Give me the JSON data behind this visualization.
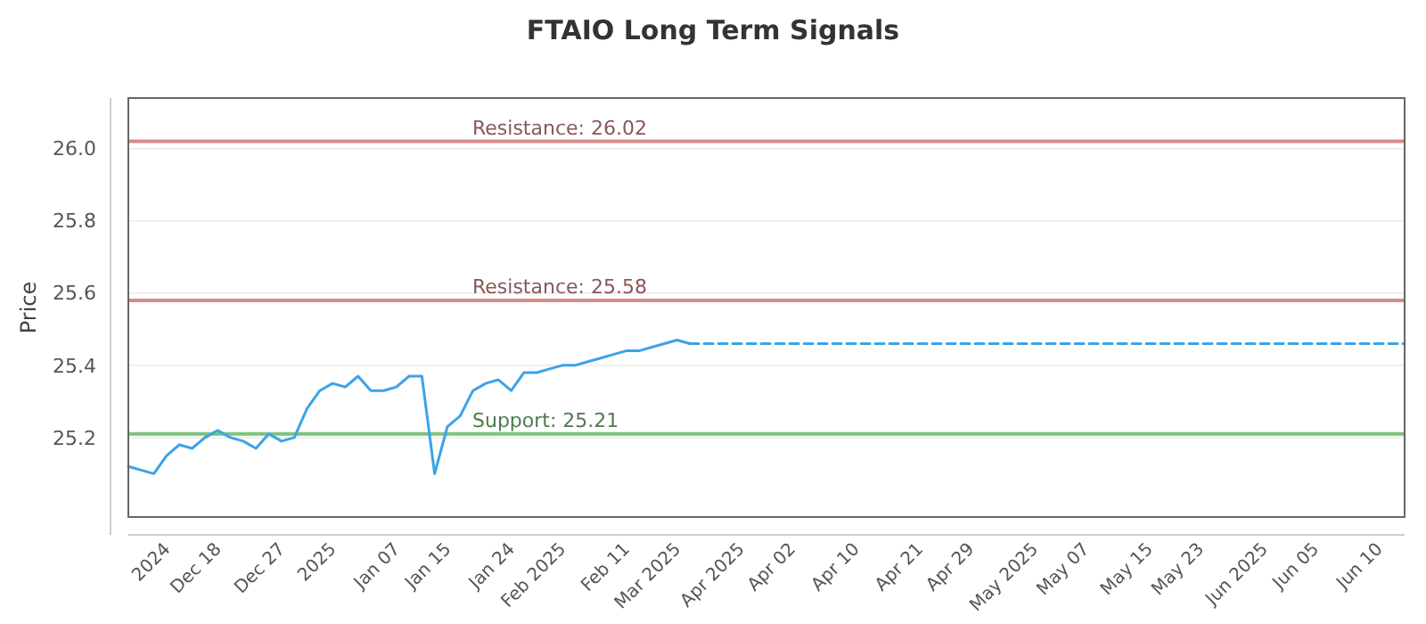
{
  "chart_data": {
    "type": "line",
    "title": "FTAIO Long Term Signals",
    "ylabel": "Price",
    "categories": [
      null,
      null,
      null,
      "2024",
      null,
      null,
      null,
      "Dec 18",
      null,
      null,
      null,
      null,
      "Dec 27",
      null,
      null,
      null,
      "2025",
      null,
      null,
      null,
      null,
      "Jan 07",
      null,
      null,
      null,
      "Jan 15",
      null,
      null,
      null,
      null,
      "Jan 24",
      null,
      null,
      null,
      "Feb 2025",
      null,
      null,
      null,
      null,
      "Feb 11",
      null,
      null,
      null,
      "Mar 2025",
      null,
      null,
      null,
      null,
      "Apr 2025",
      null,
      null,
      null,
      "Apr 02",
      null,
      null,
      null,
      null,
      "Apr 10",
      null,
      null,
      null,
      null,
      "Apr 21",
      null,
      null,
      null,
      "Apr 29",
      null,
      null,
      null,
      null,
      "May 2025",
      null,
      null,
      null,
      "May 07",
      null,
      null,
      null,
      null,
      "May 15",
      null,
      null,
      null,
      "May 23",
      null,
      null,
      null,
      null,
      "Jun 2025",
      null,
      null,
      null,
      "Jun 05",
      null,
      null,
      null,
      null,
      "Jun 10",
      null,
      null
    ],
    "series": [
      {
        "color": "#3ba3e8",
        "line_style": "solid",
        "values": [
          25.12,
          25.11,
          25.1,
          25.15,
          25.18,
          25.17,
          25.2,
          25.22,
          25.2,
          25.19,
          25.17,
          25.21,
          25.19,
          25.2,
          25.28,
          25.33,
          25.35,
          25.34,
          25.37,
          25.33,
          25.33,
          25.34,
          25.37,
          25.37,
          25.1,
          25.23,
          25.26,
          25.33,
          25.35,
          25.36,
          25.33,
          25.38,
          25.38,
          25.39,
          25.4,
          25.4,
          25.41,
          25.42,
          25.43,
          25.44,
          25.44,
          25.45,
          25.46,
          25.47,
          25.46,
          null,
          null,
          null,
          null,
          null,
          null,
          null,
          null,
          null,
          null,
          null,
          null,
          null,
          null,
          null,
          null,
          null,
          null,
          null,
          null,
          null,
          null,
          null,
          null,
          null,
          null,
          null,
          null,
          null,
          null,
          null,
          null,
          null,
          null,
          null,
          null,
          null,
          null,
          null,
          null,
          null,
          null,
          null,
          null,
          null,
          null,
          null,
          null,
          null,
          null,
          null,
          null,
          null,
          null,
          null,
          null
        ]
      },
      {
        "color": "#3ba3e8",
        "line_style": "dashed",
        "values": [
          null,
          null,
          null,
          null,
          null,
          null,
          null,
          null,
          null,
          null,
          null,
          null,
          null,
          null,
          null,
          null,
          null,
          null,
          null,
          null,
          null,
          null,
          null,
          null,
          null,
          null,
          null,
          null,
          null,
          null,
          null,
          null,
          null,
          null,
          null,
          null,
          null,
          null,
          null,
          null,
          null,
          null,
          null,
          null,
          25.46,
          25.46,
          25.46,
          25.46,
          25.46,
          25.46,
          25.46,
          25.46,
          25.46,
          25.46,
          25.46,
          25.46,
          25.46,
          25.46,
          25.46,
          25.46,
          25.46,
          25.46,
          25.46,
          25.46,
          25.46,
          25.46,
          25.46,
          25.46,
          25.46,
          25.46,
          25.46,
          25.46,
          25.46,
          25.46,
          25.46,
          25.46,
          25.46,
          25.46,
          25.46,
          25.46,
          25.46,
          25.46,
          25.46,
          25.46,
          25.46,
          25.46,
          25.46,
          25.46,
          25.46,
          25.46,
          25.46,
          25.46,
          25.46,
          25.46,
          25.46,
          25.46,
          25.46,
          25.46,
          25.46,
          25.46,
          25.46
        ]
      }
    ],
    "ylim": [
      24.98,
      26.14
    ],
    "yticks": [
      25.2,
      25.4,
      25.6,
      25.8,
      {
        "value": 26,
        "label": "26.0"
      }
    ],
    "grid": "y",
    "marker": "none",
    "ref_lines": [
      {
        "axis": "y",
        "value": 26.02,
        "label": "Resistance: 26.02",
        "color": "#d98a8a"
      },
      {
        "axis": "y",
        "value": 25.58,
        "label": "Resistance: 25.58",
        "color": "#d98a8a"
      },
      {
        "axis": "y",
        "value": 25.21,
        "label": "Support: 25.21",
        "color": "#7cc47c"
      }
    ]
  }
}
